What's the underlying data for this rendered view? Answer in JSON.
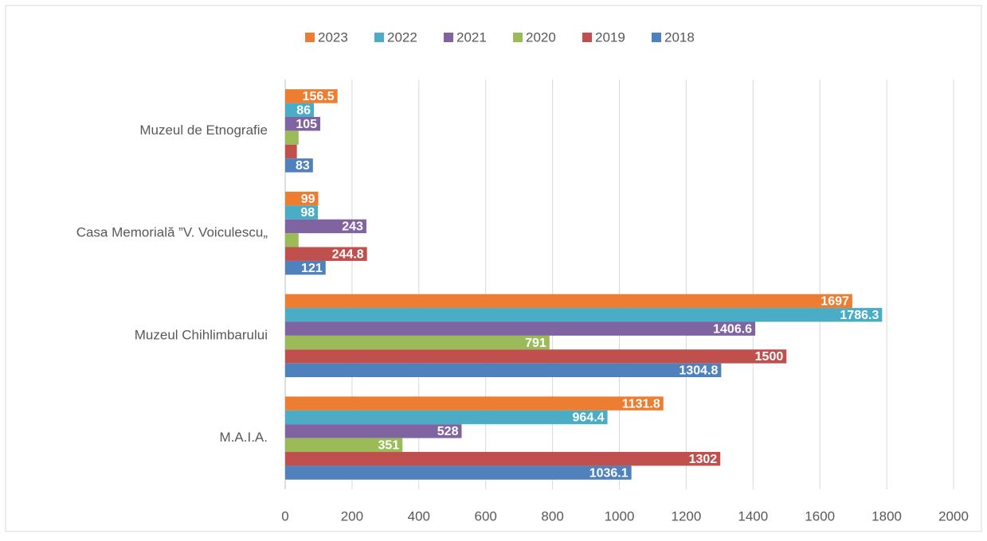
{
  "chart_data": {
    "type": "bar",
    "orientation": "horizontal",
    "categories": [
      "M.A.I.A.",
      "Muzeul Chihlimbarului",
      "Casa Memorială ”V. Voiculescu„",
      "Muzeul de Etnografie"
    ],
    "series": [
      {
        "name": "2023",
        "color": "#ed7d31",
        "values": [
          1131.8,
          1697,
          99,
          156.5
        ]
      },
      {
        "name": "2022",
        "color": "#4bacc6",
        "values": [
          964.4,
          1786.3,
          98,
          86
        ]
      },
      {
        "name": "2021",
        "color": "#8064a2",
        "values": [
          528,
          1406.6,
          243,
          105
        ]
      },
      {
        "name": "2020",
        "color": "#9bbb59",
        "values": [
          351,
          791,
          40,
          40
        ],
        "value_labels": [
          "351",
          "791",
          null,
          null
        ]
      },
      {
        "name": "2019",
        "color": "#c0504d",
        "values": [
          1302,
          1500,
          244.8,
          35
        ],
        "value_labels": [
          "1302",
          "1500",
          "244.8",
          null
        ]
      },
      {
        "name": "2018",
        "color": "#4f81bd",
        "values": [
          1036.1,
          1304.8,
          121,
          83
        ]
      }
    ],
    "xlim": [
      0,
      2000
    ],
    "xticks": [
      0,
      200,
      400,
      600,
      800,
      1000,
      1200,
      1400,
      1600,
      1800,
      2000
    ],
    "grid": true,
    "legend": "top"
  }
}
